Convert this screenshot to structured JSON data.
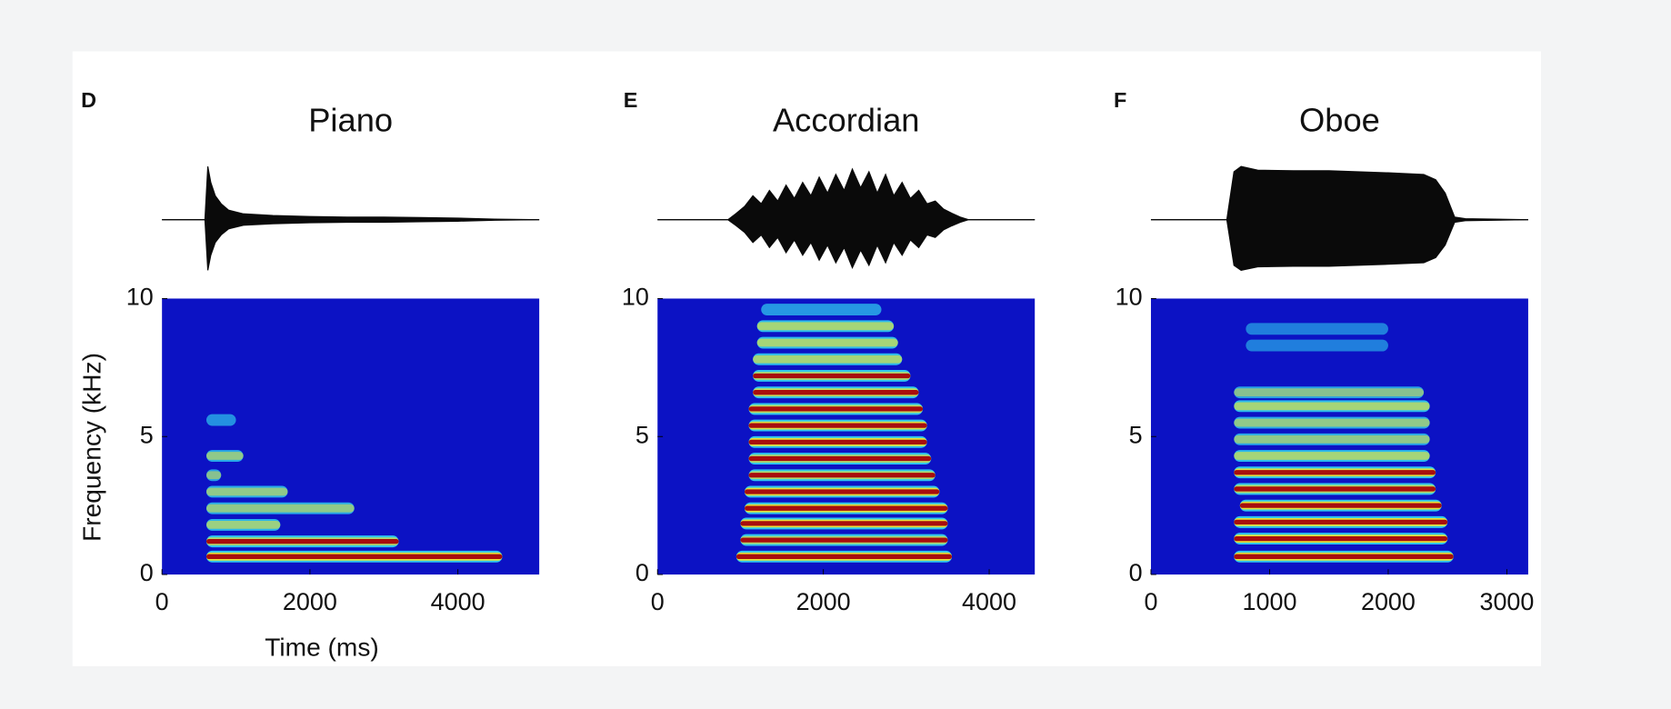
{
  "chart_data": [
    {
      "type": "spectrogram",
      "label": "D",
      "title": "Piano",
      "xlabel": "Time (ms)",
      "ylabel": "Frequency (kHz)",
      "xlim": [
        0,
        5100
      ],
      "xticks": [
        0,
        2000,
        4000
      ],
      "ylim": [
        0,
        10
      ],
      "yticks": [
        0,
        5,
        10
      ],
      "waveform": {
        "x": [
          0,
          580,
          620,
          660,
          720,
          800,
          900,
          1100,
          1500,
          2000,
          2500,
          3000,
          3500,
          4000,
          4500,
          5100
        ],
        "values": [
          0,
          0,
          1.0,
          0.7,
          0.45,
          0.3,
          0.18,
          0.11,
          0.08,
          0.06,
          0.05,
          0.05,
          0.04,
          0.03,
          0.01,
          0
        ]
      },
      "bands": [
        {
          "freq": 0.65,
          "start": 600,
          "end": 4600,
          "intensity": 1.0
        },
        {
          "freq": 1.2,
          "start": 600,
          "end": 3200,
          "intensity": 0.6
        },
        {
          "freq": 1.8,
          "start": 600,
          "end": 1600,
          "intensity": 0.5
        },
        {
          "freq": 2.4,
          "start": 600,
          "end": 2600,
          "intensity": 0.45
        },
        {
          "freq": 3.0,
          "start": 600,
          "end": 1700,
          "intensity": 0.45
        },
        {
          "freq": 3.6,
          "start": 600,
          "end": 800,
          "intensity": 0.4
        },
        {
          "freq": 4.3,
          "start": 600,
          "end": 1100,
          "intensity": 0.45
        },
        {
          "freq": 5.6,
          "start": 600,
          "end": 1000,
          "intensity": 0.3
        }
      ]
    },
    {
      "type": "spectrogram",
      "label": "E",
      "title": "Accordian",
      "xlim": [
        0,
        4550
      ],
      "xticks": [
        0,
        2000,
        4000
      ],
      "ylim": [
        0,
        10
      ],
      "yticks": [
        0,
        5,
        10
      ],
      "waveform": {
        "x": [
          0,
          850,
          950,
          1050,
          1150,
          1250,
          1350,
          1450,
          1550,
          1650,
          1750,
          1850,
          1950,
          2050,
          2150,
          2250,
          2350,
          2450,
          2550,
          2650,
          2750,
          2850,
          2950,
          3050,
          3150,
          3250,
          3350,
          3450,
          3550,
          3650,
          3750,
          4550
        ],
        "values": [
          0,
          0,
          0.12,
          0.25,
          0.45,
          0.3,
          0.55,
          0.35,
          0.65,
          0.4,
          0.7,
          0.45,
          0.8,
          0.5,
          0.85,
          0.55,
          0.95,
          0.6,
          0.9,
          0.5,
          0.85,
          0.45,
          0.7,
          0.4,
          0.55,
          0.3,
          0.35,
          0.2,
          0.12,
          0.05,
          0,
          0
        ]
      },
      "bands": [
        {
          "freq": 0.65,
          "start": 950,
          "end": 3550,
          "intensity": 1.0
        },
        {
          "freq": 1.25,
          "start": 1000,
          "end": 3500,
          "intensity": 0.6
        },
        {
          "freq": 1.85,
          "start": 1000,
          "end": 3500,
          "intensity": 0.95
        },
        {
          "freq": 2.4,
          "start": 1050,
          "end": 3500,
          "intensity": 0.9
        },
        {
          "freq": 3.0,
          "start": 1050,
          "end": 3400,
          "intensity": 0.9
        },
        {
          "freq": 3.6,
          "start": 1100,
          "end": 3350,
          "intensity": 0.6
        },
        {
          "freq": 4.2,
          "start": 1100,
          "end": 3300,
          "intensity": 0.6
        },
        {
          "freq": 4.8,
          "start": 1100,
          "end": 3250,
          "intensity": 0.9
        },
        {
          "freq": 5.4,
          "start": 1100,
          "end": 3250,
          "intensity": 0.85
        },
        {
          "freq": 6.0,
          "start": 1100,
          "end": 3200,
          "intensity": 0.7
        },
        {
          "freq": 6.6,
          "start": 1150,
          "end": 3150,
          "intensity": 0.7
        },
        {
          "freq": 7.2,
          "start": 1150,
          "end": 3050,
          "intensity": 0.6
        },
        {
          "freq": 7.8,
          "start": 1150,
          "end": 2950,
          "intensity": 0.55
        },
        {
          "freq": 8.4,
          "start": 1200,
          "end": 2900,
          "intensity": 0.55
        },
        {
          "freq": 9.0,
          "start": 1200,
          "end": 2850,
          "intensity": 0.55
        },
        {
          "freq": 9.6,
          "start": 1250,
          "end": 2700,
          "intensity": 0.35
        }
      ]
    },
    {
      "type": "spectrogram",
      "label": "F",
      "title": "Oboe",
      "xlim": [
        0,
        3180
      ],
      "xticks": [
        0,
        1000,
        2000,
        3000
      ],
      "ylim": [
        0,
        10
      ],
      "yticks": [
        0,
        5,
        10
      ],
      "waveform": {
        "x": [
          0,
          640,
          700,
          760,
          900,
          1200,
          1500,
          2000,
          2300,
          2400,
          2480,
          2560,
          2650,
          3180
        ],
        "values": [
          0,
          0,
          0.9,
          1.0,
          0.93,
          0.92,
          0.92,
          0.88,
          0.85,
          0.75,
          0.5,
          0.05,
          0.02,
          0
        ]
      },
      "bands": [
        {
          "freq": 0.65,
          "start": 700,
          "end": 2550,
          "intensity": 1.0
        },
        {
          "freq": 1.3,
          "start": 700,
          "end": 2500,
          "intensity": 1.0
        },
        {
          "freq": 1.9,
          "start": 700,
          "end": 2500,
          "intensity": 0.95
        },
        {
          "freq": 2.5,
          "start": 750,
          "end": 2450,
          "intensity": 0.9
        },
        {
          "freq": 3.1,
          "start": 700,
          "end": 2400,
          "intensity": 0.65
        },
        {
          "freq": 3.7,
          "start": 700,
          "end": 2400,
          "intensity": 0.85
        },
        {
          "freq": 4.3,
          "start": 700,
          "end": 2350,
          "intensity": 0.55
        },
        {
          "freq": 4.9,
          "start": 700,
          "end": 2350,
          "intensity": 0.45
        },
        {
          "freq": 5.5,
          "start": 700,
          "end": 2350,
          "intensity": 0.45
        },
        {
          "freq": 6.1,
          "start": 700,
          "end": 2350,
          "intensity": 0.55
        },
        {
          "freq": 6.6,
          "start": 700,
          "end": 2300,
          "intensity": 0.4
        },
        {
          "freq": 8.3,
          "start": 800,
          "end": 2000,
          "intensity": 0.2
        },
        {
          "freq": 8.9,
          "start": 800,
          "end": 2000,
          "intensity": 0.2
        }
      ]
    }
  ]
}
